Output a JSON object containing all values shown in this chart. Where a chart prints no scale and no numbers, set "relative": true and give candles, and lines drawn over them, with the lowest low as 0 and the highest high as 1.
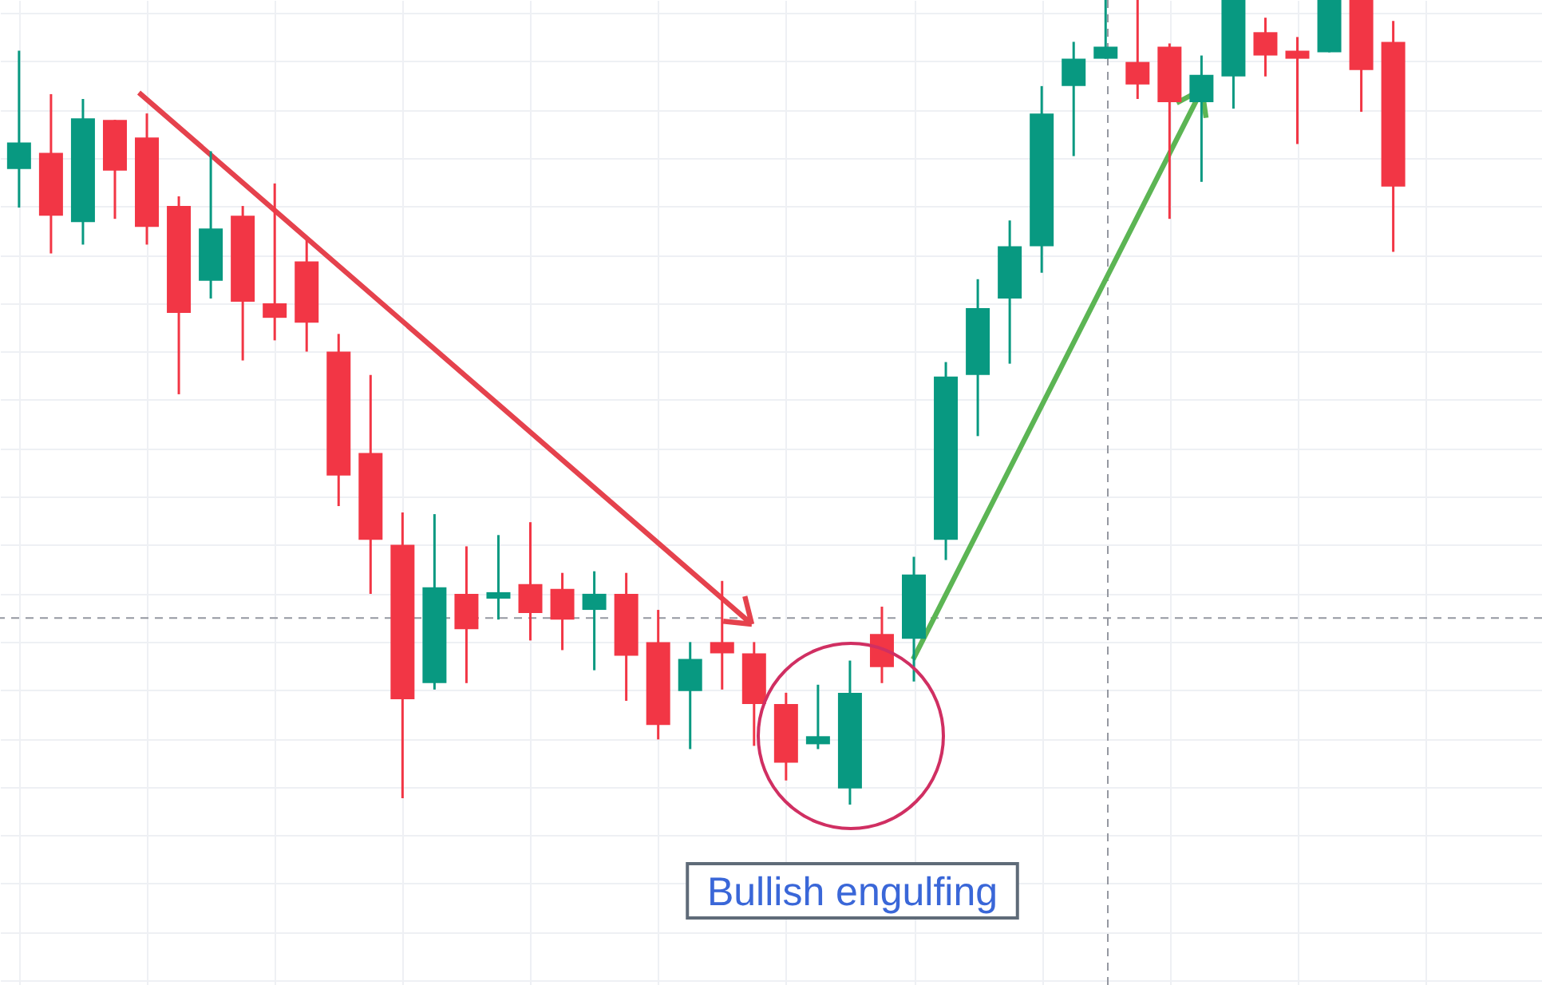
{
  "chart_data": {
    "type": "candlestick",
    "relative": true,
    "categories": [
      null,
      null,
      null,
      null,
      null,
      null,
      null,
      null,
      null,
      null,
      null,
      null,
      null,
      null,
      null,
      null,
      null,
      null,
      null,
      null,
      null,
      null,
      null,
      null,
      null,
      null,
      null,
      null,
      null,
      null,
      null,
      null,
      null,
      null,
      null,
      null,
      null,
      null,
      null,
      null,
      null,
      null,
      null,
      null
    ],
    "ohlc": [
      [
        0.79,
        0.937,
        0.742,
        0.823
      ],
      [
        0.81,
        0.883,
        0.685,
        0.732
      ],
      [
        0.724,
        0.877,
        0.696,
        0.853
      ],
      [
        0.851,
        0.851,
        0.728,
        0.788
      ],
      [
        0.829,
        0.859,
        0.696,
        0.718
      ],
      [
        0.744,
        0.756,
        0.51,
        0.611
      ],
      [
        0.651,
        0.812,
        0.629,
        0.716
      ],
      [
        0.732,
        0.744,
        0.552,
        0.625
      ],
      [
        0.623,
        0.772,
        0.577,
        0.605
      ],
      [
        0.675,
        0.702,
        0.563,
        0.599
      ],
      [
        0.563,
        0.585,
        0.371,
        0.409
      ],
      [
        0.437,
        0.534,
        0.262,
        0.329
      ],
      [
        0.323,
        0.363,
        0.008,
        0.131
      ],
      [
        0.151,
        0.361,
        0.143,
        0.27
      ],
      [
        0.262,
        0.321,
        0.151,
        0.218
      ],
      [
        0.256,
        0.335,
        0.23,
        0.264
      ],
      [
        0.274,
        0.351,
        0.204,
        0.238
      ],
      [
        0.268,
        0.288,
        0.192,
        0.23
      ],
      [
        0.242,
        0.29,
        0.167,
        0.262
      ],
      [
        0.262,
        0.288,
        0.129,
        0.185
      ],
      [
        0.202,
        0.242,
        0.081,
        0.099
      ],
      [
        0.141,
        0.202,
        0.069,
        0.181
      ],
      [
        0.202,
        0.278,
        0.143,
        0.188
      ],
      [
        0.188,
        0.202,
        0.073,
        0.125
      ],
      [
        0.125,
        0.139,
        0.03,
        0.052
      ],
      [
        0.075,
        0.149,
        0.069,
        0.085
      ],
      [
        0.02,
        0.179,
        0.0,
        0.139
      ],
      [
        0.212,
        0.246,
        0.151,
        0.171
      ],
      [
        0.206,
        0.308,
        0.153,
        0.286
      ],
      [
        0.329,
        0.55,
        0.304,
        0.532
      ],
      [
        0.534,
        0.653,
        0.458,
        0.617
      ],
      [
        0.629,
        0.726,
        0.548,
        0.694
      ],
      [
        0.694,
        0.893,
        0.661,
        0.859
      ],
      [
        0.893,
        0.948,
        0.806,
        0.927
      ],
      [
        0.927,
        1.0,
        0.927,
        0.942
      ],
      [
        0.923,
        1.0,
        0.877,
        0.895
      ],
      [
        0.942,
        0.946,
        0.728,
        0.873
      ],
      [
        0.873,
        0.931,
        0.774,
        0.907
      ],
      [
        0.905,
        1.0,
        0.865,
        1.0
      ],
      [
        0.96,
        0.978,
        0.905,
        0.931
      ],
      [
        0.937,
        0.954,
        0.821,
        0.927
      ],
      [
        0.935,
        1.0,
        0.935,
        1.0
      ],
      [
        1.0,
        1.0,
        0.861,
        0.913
      ],
      [
        0.948,
        0.974,
        0.687,
        0.768
      ]
    ],
    "colors": [
      "#089981",
      "#f23645",
      "#089981",
      "#f23645",
      "#f23645",
      "#f23645",
      "#089981",
      "#f23645",
      "#f23645",
      "#f23645",
      "#f23645",
      "#f23645",
      "#f23645",
      "#089981",
      "#f23645",
      "#089981",
      "#f23645",
      "#f23645",
      "#089981",
      "#f23645",
      "#f23645",
      "#089981",
      "#f23645",
      "#f23645",
      "#f23645",
      "#089981",
      "#089981",
      "#f23645",
      "#089981",
      "#089981",
      "#089981",
      "#089981",
      "#089981",
      "#089981",
      "#089981",
      "#f23645",
      "#f23645",
      "#089981",
      "#089981",
      "#f23645",
      "#f23645",
      "#089981",
      "#f23645",
      "#f23645"
    ],
    "ref_lines": [
      {
        "axis": "y",
        "value": 0.232,
        "color": "#9598a1",
        "line_style": "dashed"
      }
    ],
    "annotations": [
      "Bullish engulfing"
    ],
    "grid": true
  }
}
